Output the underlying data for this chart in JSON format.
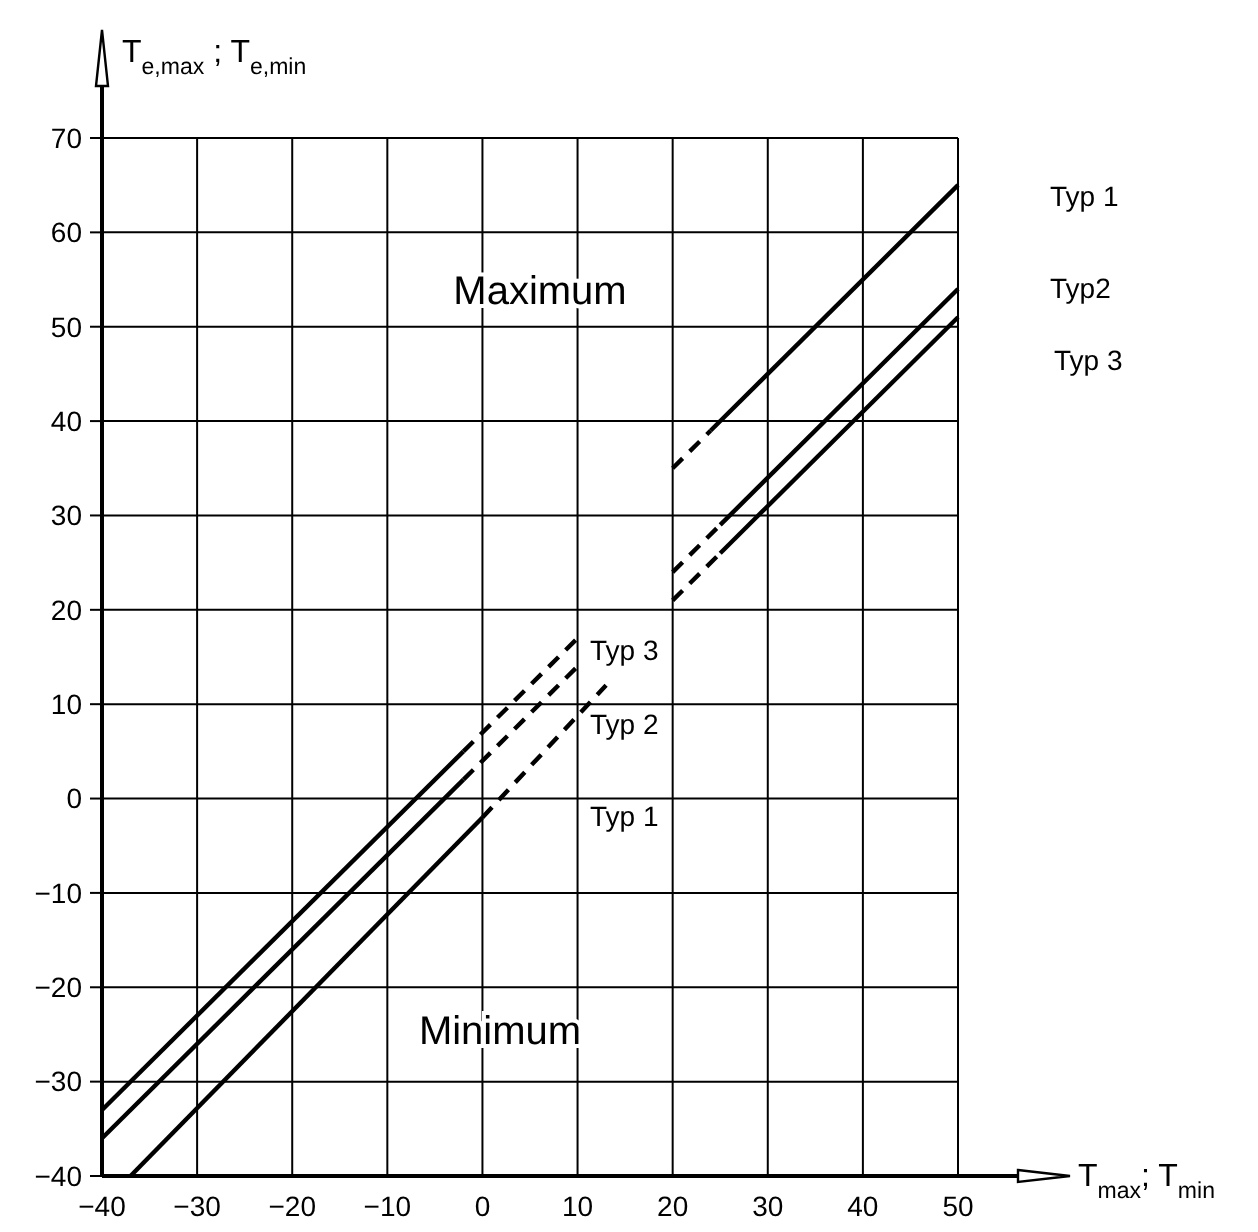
{
  "chart_data": {
    "type": "line",
    "xlabel": "T$_{max}$; T$_{min}$",
    "ylabel": "T$_{e,max}$ ; T$_{e,min}$",
    "xlim": [
      -40,
      50
    ],
    "ylim": [
      -40,
      70
    ],
    "xticks": [
      -40,
      -30,
      -20,
      -10,
      0,
      10,
      20,
      30,
      40,
      50
    ],
    "yticks": [
      -40,
      -30,
      -20,
      -10,
      0,
      10,
      20,
      30,
      40,
      50,
      60,
      70
    ],
    "grid": true,
    "series": [
      {
        "color": "#000000",
        "line_style": "dashed",
        "x": [
          20,
          24
        ],
        "values": [
          35,
          39
        ]
      },
      {
        "color": "#000000",
        "line_style": "solid",
        "x": [
          24,
          50
        ],
        "values": [
          39,
          65
        ]
      },
      {
        "color": "#000000",
        "line_style": "dashed",
        "x": [
          20,
          25
        ],
        "values": [
          24,
          29
        ]
      },
      {
        "color": "#000000",
        "line_style": "solid",
        "x": [
          25,
          50
        ],
        "values": [
          29,
          54
        ]
      },
      {
        "color": "#000000",
        "line_style": "dashed",
        "x": [
          20,
          25
        ],
        "values": [
          21,
          26
        ]
      },
      {
        "color": "#000000",
        "line_style": "solid",
        "x": [
          25,
          50
        ],
        "values": [
          26,
          51
        ]
      },
      {
        "color": "#000000",
        "line_style": "solid",
        "x": [
          -37,
          0
        ],
        "values": [
          -40,
          -2
        ]
      },
      {
        "color": "#000000",
        "line_style": "dashed",
        "x": [
          0,
          13
        ],
        "values": [
          -2,
          12
        ]
      },
      {
        "color": "#000000",
        "line_style": "solid",
        "x": [
          -40,
          -2
        ],
        "values": [
          -36,
          2
        ]
      },
      {
        "color": "#000000",
        "line_style": "dashed",
        "x": [
          -2,
          10
        ],
        "values": [
          2,
          14
        ]
      },
      {
        "color": "#000000",
        "line_style": "solid",
        "x": [
          -40,
          -2
        ],
        "values": [
          -33,
          5
        ]
      },
      {
        "color": "#000000",
        "line_style": "dashed",
        "x": [
          -2,
          10
        ],
        "values": [
          5,
          17
        ]
      }
    ],
    "annotations": [
      "Maximum",
      "Minimum",
      "Typ 1",
      "Typ2",
      "Typ 3",
      "Typ 3",
      "Typ 2",
      "Typ 1"
    ]
  }
}
